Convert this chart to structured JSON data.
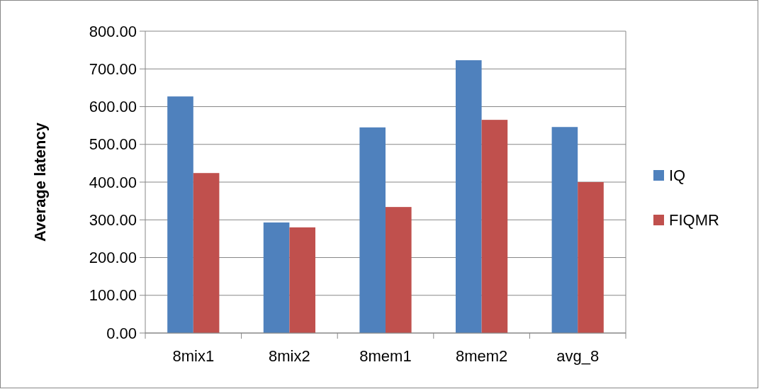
{
  "chart_data": {
    "type": "bar",
    "ylabel": "Average latency",
    "categories": [
      "8mix1",
      "8mix2",
      "8mem1",
      "8mem2",
      "avg_8"
    ],
    "series": [
      {
        "name": "IQ",
        "color": "#4f81bd",
        "values": [
          627,
          293,
          545,
          723,
          546
        ]
      },
      {
        "name": "FIQMR",
        "color": "#c0504d",
        "values": [
          424,
          280,
          334,
          565,
          400
        ]
      }
    ],
    "ylim": [
      0,
      800
    ],
    "yticks": [
      {
        "value": 0,
        "label": "0.00"
      },
      {
        "value": 100,
        "label": "100.00"
      },
      {
        "value": 200,
        "label": "200.00"
      },
      {
        "value": 300,
        "label": "300.00"
      },
      {
        "value": 400,
        "label": "400.00"
      },
      {
        "value": 500,
        "label": "500.00"
      },
      {
        "value": 600,
        "label": "600.00"
      },
      {
        "value": 700,
        "label": "700.00"
      },
      {
        "value": 800,
        "label": "800.00"
      }
    ],
    "grid": "y",
    "legend": "right"
  }
}
